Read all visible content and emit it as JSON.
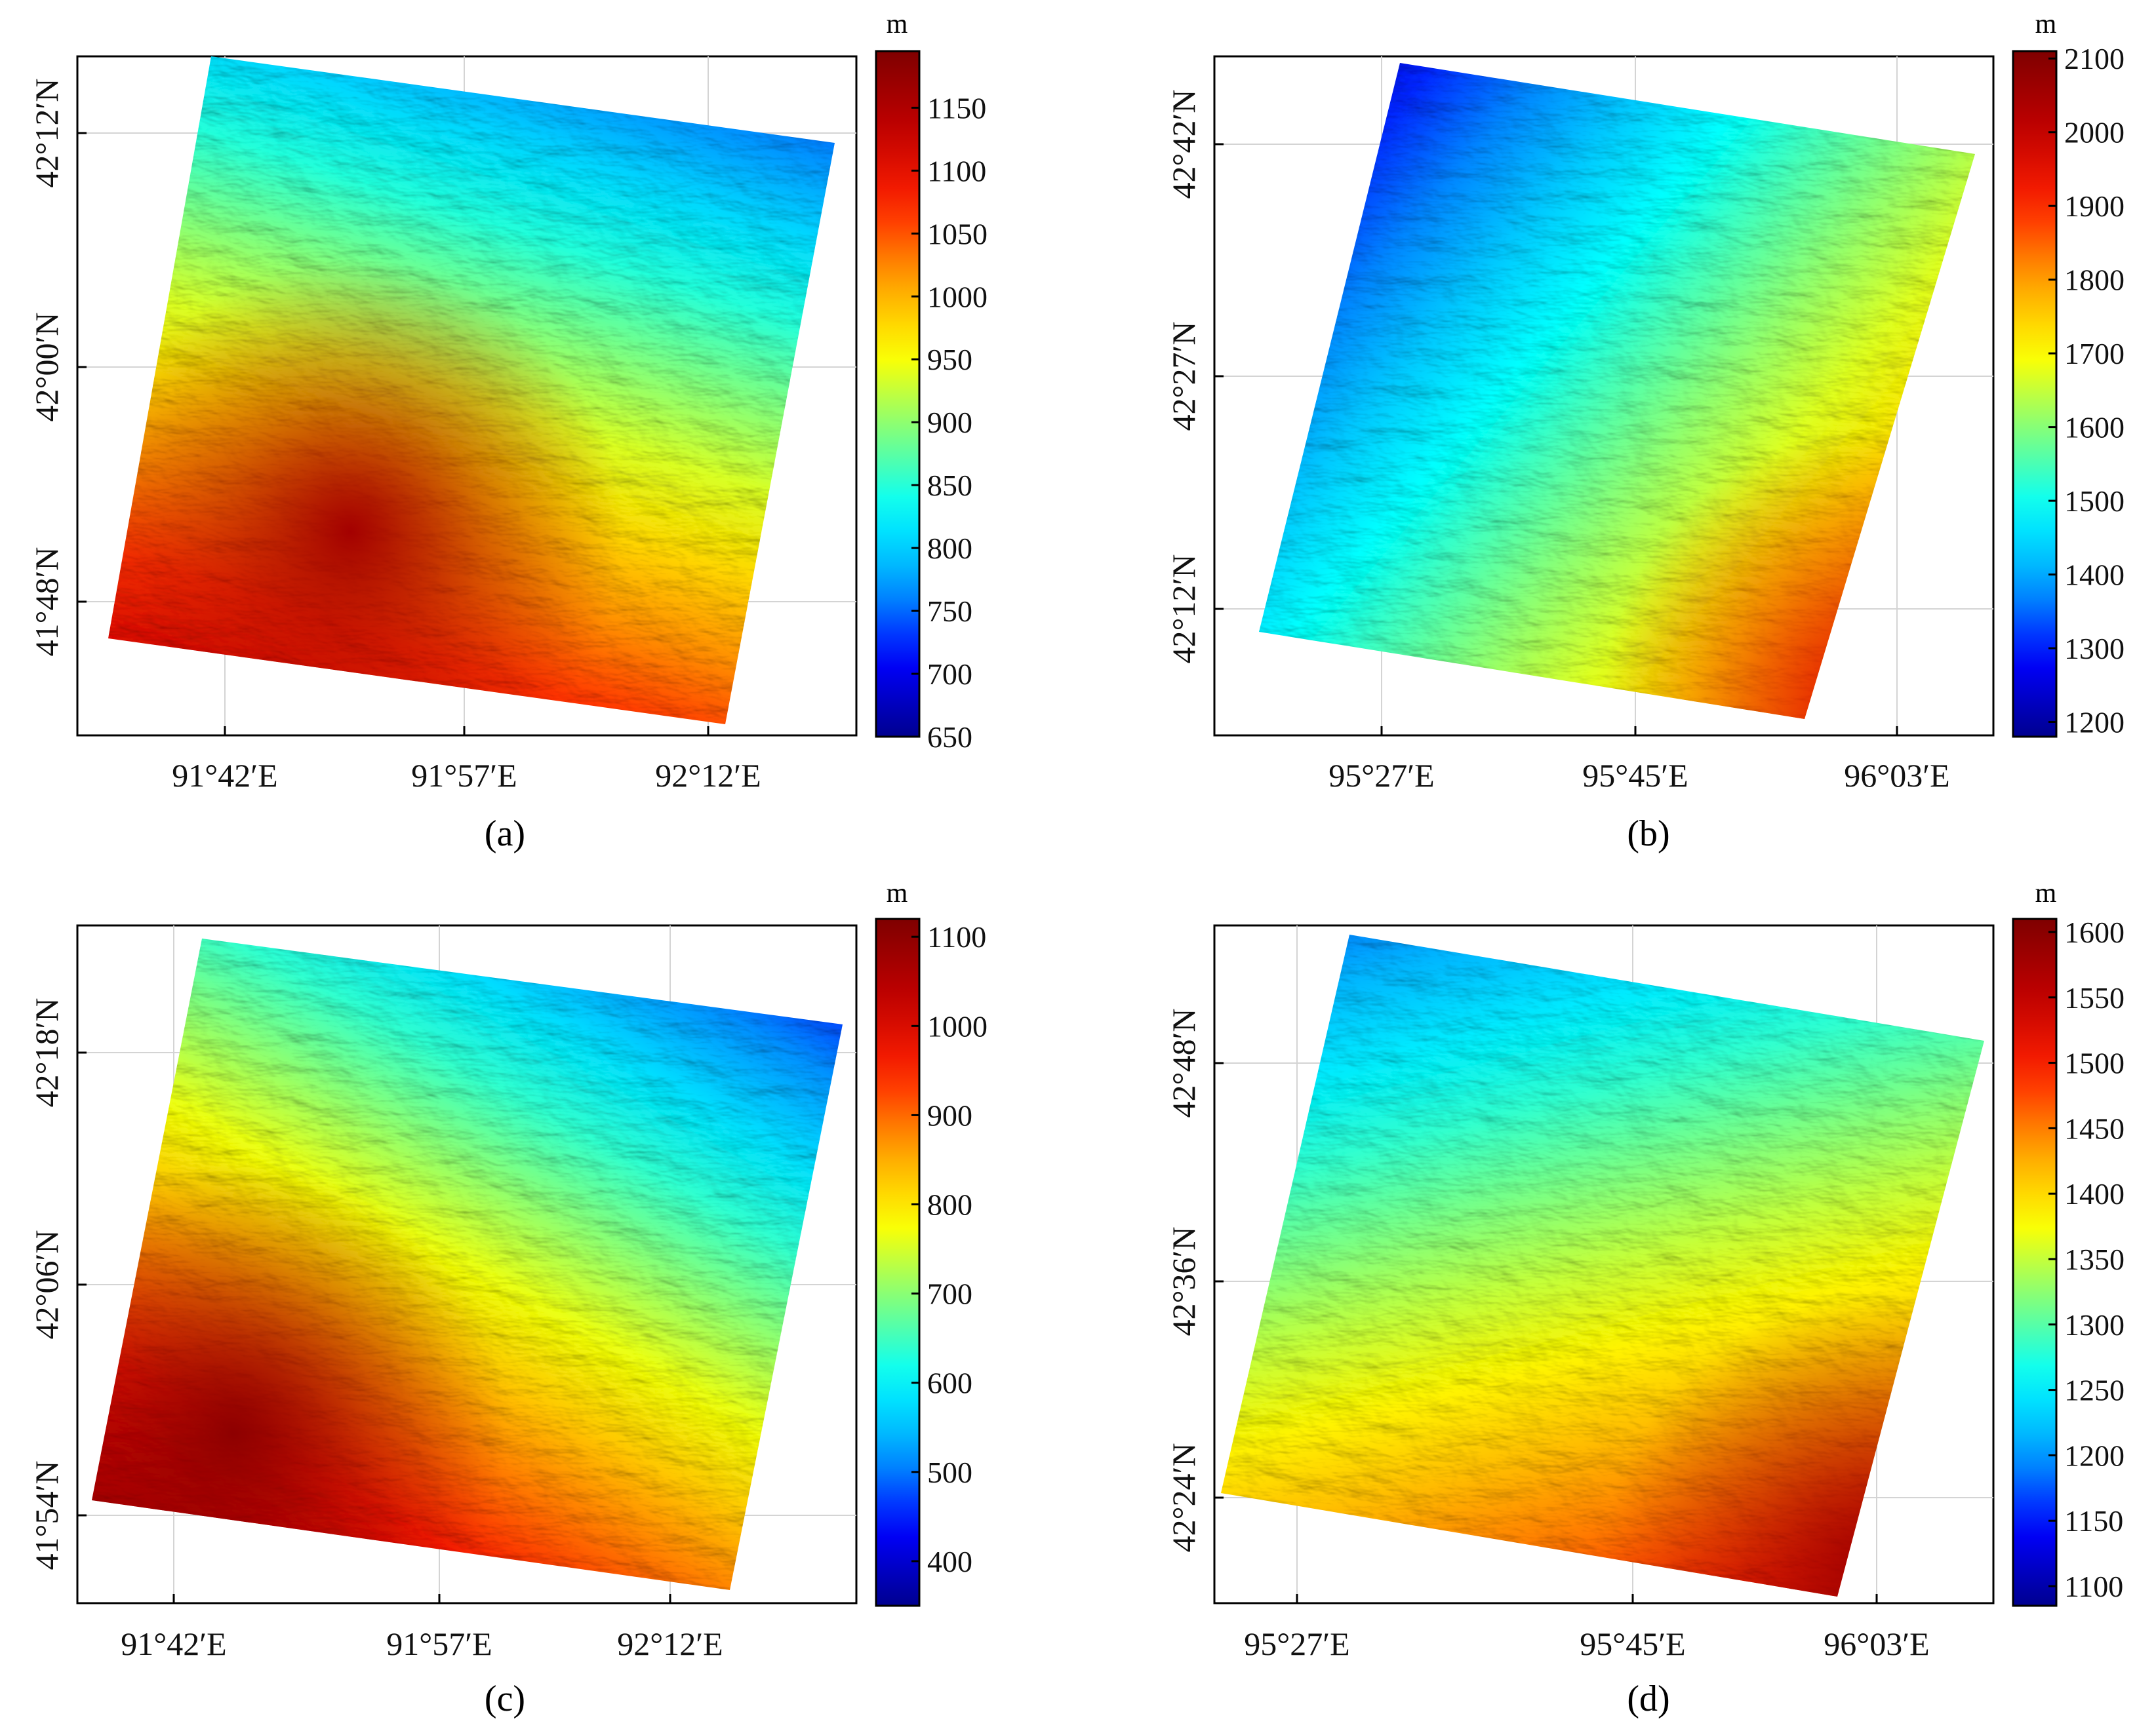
{
  "colormap": [
    "#00008f",
    "#0000ff",
    "#00a0ff",
    "#00ffff",
    "#7fff7f",
    "#ffff00",
    "#ff9f00",
    "#ff2000",
    "#bf0000",
    "#7f0000"
  ],
  "chart_data": [
    {
      "type": "heatmap",
      "panel_label": "(a)",
      "colorbar_unit": "m",
      "colorbar_range": [
        650,
        1195
      ],
      "colorbar_ticks": [
        "650",
        "700",
        "750",
        "800",
        "850",
        "900",
        "950",
        "1000",
        "1050",
        "1100",
        "1150"
      ],
      "x_ticks": [
        "91°42′E",
        "91°57′E",
        "92°12′E"
      ],
      "y_ticks": [
        "42°12′N",
        "42°00′N",
        "41°48′N"
      ],
      "elevation_field": {
        "north_west": 900,
        "north_east": 720,
        "south_west": 1150,
        "south_east": 1120,
        "ridge_center": [
          0.35,
          0.7
        ],
        "ridge_value": 1160
      }
    },
    {
      "type": "heatmap",
      "panel_label": "(b)",
      "colorbar_unit": "m",
      "colorbar_range": [
        1180,
        2110
      ],
      "colorbar_ticks": [
        "1200",
        "1300",
        "1400",
        "1500",
        "1600",
        "1700",
        "1800",
        "1900",
        "2000",
        "2100"
      ],
      "x_ticks": [
        "95°27′E",
        "95°45′E",
        "96°03′E"
      ],
      "y_ticks": [
        "42°42′N",
        "42°27′N",
        "42°12′N"
      ],
      "elevation_field": {
        "north_west": 1250,
        "north_east": 1400,
        "south_west": 1350,
        "south_east": 1850,
        "ridge_center": [
          0.85,
          0.95
        ],
        "ridge_value": 1950
      }
    },
    {
      "type": "heatmap",
      "panel_label": "(c)",
      "colorbar_unit": "m",
      "colorbar_range": [
        350,
        1120
      ],
      "colorbar_ticks": [
        "400",
        "500",
        "600",
        "700",
        "800",
        "900",
        "1000",
        "1100"
      ],
      "x_ticks": [
        "91°42′E",
        "91°57′E",
        "92°12′E"
      ],
      "y_ticks": [
        "42°18′N",
        "42°06′N",
        "41°54′N"
      ],
      "elevation_field": {
        "north_west": 720,
        "north_east": 450,
        "south_west": 1080,
        "south_east": 900,
        "ridge_center": [
          0.2,
          0.75
        ],
        "ridge_value": 1100
      }
    },
    {
      "type": "heatmap",
      "panel_label": "(d)",
      "colorbar_unit": "m",
      "colorbar_range": [
        1085,
        1610
      ],
      "colorbar_ticks": [
        "1100",
        "1150",
        "1200",
        "1250",
        "1300",
        "1350",
        "1400",
        "1450",
        "1500",
        "1550",
        "1600"
      ],
      "x_ticks": [
        "95°27′E",
        "95°45′E",
        "96°03′E"
      ],
      "y_ticks": [
        "42°48′N",
        "42°36′N",
        "42°24′N"
      ],
      "elevation_field": {
        "north_west": 1400,
        "north_east": 1180,
        "south_west": 1250,
        "south_east": 1520,
        "ridge_center": [
          0.85,
          0.95
        ],
        "ridge_value": 1580
      }
    }
  ]
}
